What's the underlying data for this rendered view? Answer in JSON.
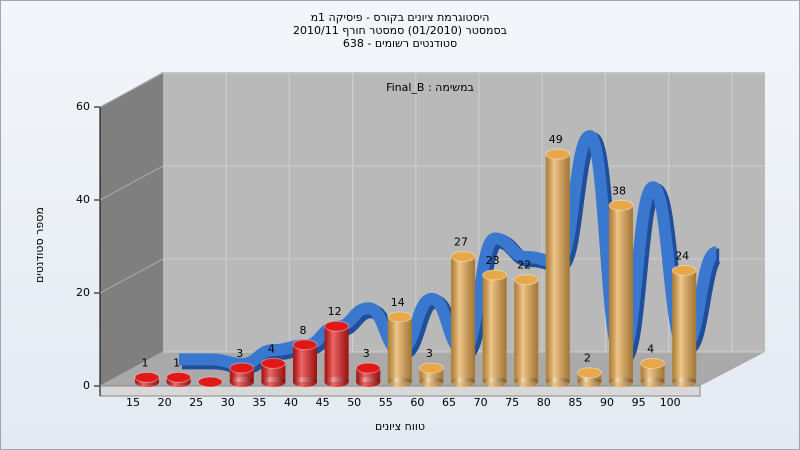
{
  "chart_data": {
    "type": "bar",
    "title_lines": [
      "היסטוגרמת ציונים בקורס - פיסיקה 1מ",
      "בסמסטר  (01/2010)  סמסטר חורף 2010/11",
      "סטודנטים רשומים - 638"
    ],
    "annotation": "Final_B : במשימה",
    "x_label": "טווח ציונים",
    "y_label": "מספר סטודנטים",
    "categories": [
      "15",
      "20",
      "25",
      "30",
      "35",
      "40",
      "45",
      "50",
      "55",
      "60",
      "65",
      "70",
      "75",
      "80",
      "85",
      "90",
      "95",
      "100"
    ],
    "values": [
      1,
      1,
      0,
      3,
      4,
      8,
      12,
      3,
      14,
      3,
      27,
      23,
      22,
      49,
      2,
      38,
      4,
      24
    ],
    "colors": [
      "#e01818",
      "#e01818",
      "#e01818",
      "#e01818",
      "#e01818",
      "#e01818",
      "#e01818",
      "#e01818",
      "#e8a84a",
      "#e8a84a",
      "#e8a84a",
      "#e8a84a",
      "#e8a84a",
      "#e8a84a",
      "#e8a84a",
      "#e8a84a",
      "#e8a84a",
      "#e8a84a"
    ],
    "ribbon_color": "#3a78d0",
    "ylim": [
      0,
      60
    ],
    "yticks": [
      0,
      20,
      40,
      60
    ],
    "grid": true
  }
}
